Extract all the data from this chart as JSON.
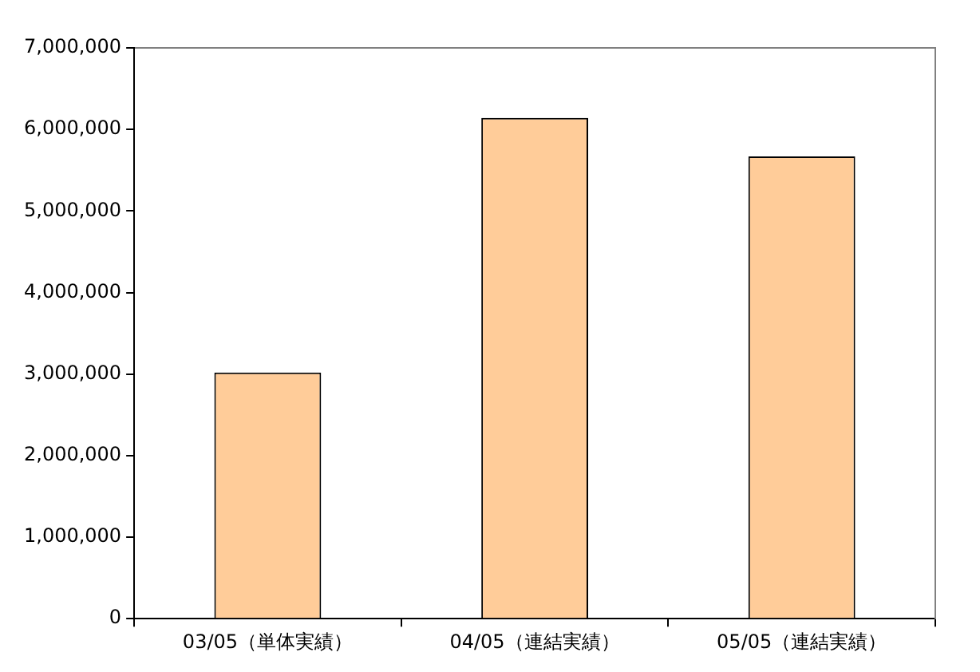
{
  "chart_data": {
    "type": "bar",
    "categories": [
      "03/05（単体実績）",
      "04/05（連結実績）",
      "05/05（連結実績）"
    ],
    "values": [
      3020000,
      6140000,
      5670000
    ],
    "color": "#ffcc99",
    "ylim": [
      0,
      7000000
    ],
    "yticks": [
      0,
      {
        "value": 1000000,
        "label": "1,000,000"
      },
      {
        "value": 2000000,
        "label": "2,000,000"
      },
      {
        "value": 3000000,
        "label": "3,000,000"
      },
      {
        "value": 4000000,
        "label": "4,000,000"
      },
      {
        "value": 5000000,
        "label": "5,000,000"
      },
      {
        "value": 6000000,
        "label": "6,000,000"
      },
      {
        "value": 7000000,
        "label": "7,000,000"
      }
    ],
    "grid": false
  }
}
